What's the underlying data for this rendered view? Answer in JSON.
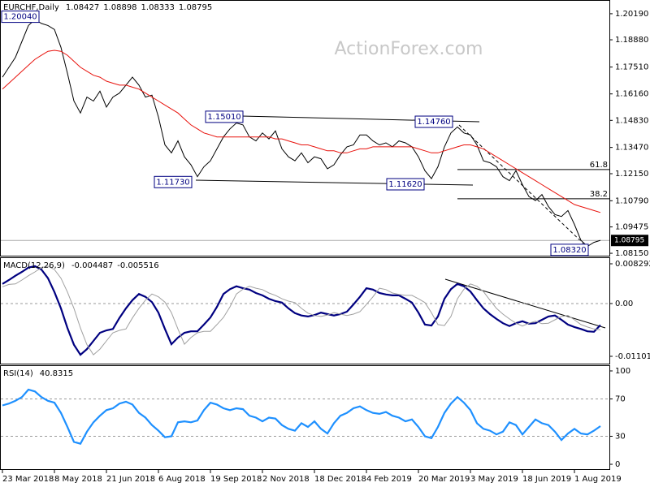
{
  "chart_data": [
    {
      "type": "line",
      "title": "EURCHF,Daily",
      "ohlc": [
        1.08427,
        1.08898,
        1.08333,
        1.08795
      ],
      "watermark": "ActionForex.com",
      "ylim": [
        1.0803,
        1.2088
      ],
      "yticks": [
        {
          "value": 1.2019,
          "label": "1.20190"
        },
        {
          "value": 1.1888,
          "label": "1.18880"
        },
        {
          "value": 1.1751,
          "label": "1.17510"
        },
        {
          "value": 1.1616,
          "label": "1.16160"
        },
        {
          "value": 1.1483,
          "label": "1.14830"
        },
        {
          "value": 1.1347,
          "label": "1.13470"
        },
        {
          "value": 1.1215,
          "label": "1.12150"
        },
        {
          "value": 1.1079,
          "label": "1.10790"
        },
        1.09475,
        {
          "value": 1.0815,
          "label": "1.08150"
        }
      ],
      "categories": [
        "23 Mar 2018",
        null,
        null,
        null,
        null,
        null,
        null,
        null,
        "8 May 2018",
        null,
        null,
        null,
        null,
        null,
        null,
        null,
        "21 Jun 2018",
        null,
        null,
        null,
        null,
        null,
        null,
        null,
        "6 Aug 2018",
        null,
        null,
        null,
        null,
        null,
        null,
        null,
        "19 Sep 2018",
        null,
        null,
        null,
        null,
        null,
        null,
        null,
        "2 Nov 2018",
        null,
        null,
        null,
        null,
        null,
        null,
        null,
        "18 Dec 2018",
        null,
        null,
        null,
        null,
        null,
        null,
        null,
        "4 Feb 2019",
        null,
        null,
        null,
        null,
        null,
        null,
        null,
        "20 Mar 2019",
        null,
        null,
        null,
        null,
        null,
        null,
        null,
        "3 May 2019",
        null,
        null,
        null,
        null,
        null,
        null,
        null,
        "18 Jun 2019",
        null,
        null,
        null,
        null,
        null,
        null,
        null,
        "1 Aug 2019",
        null,
        null,
        null,
        null
      ],
      "series": [
        {
          "color": "#000000",
          "values": [
            1.17,
            1.175,
            1.18,
            1.188,
            1.196,
            1.199,
            1.197,
            1.196,
            1.194,
            1.185,
            1.172,
            1.158,
            1.152,
            1.16,
            1.158,
            1.163,
            1.155,
            1.16,
            1.162,
            1.166,
            1.17,
            1.166,
            1.16,
            1.161,
            1.15,
            1.136,
            1.132,
            1.138,
            1.13,
            1.126,
            1.12,
            1.125,
            1.128,
            1.134,
            1.14,
            1.144,
            1.147,
            1.146,
            1.14,
            1.138,
            1.142,
            1.139,
            1.143,
            1.134,
            1.13,
            1.128,
            1.132,
            1.127,
            1.13,
            1.129,
            1.124,
            1.126,
            1.131,
            1.135,
            1.136,
            1.141,
            1.141,
            1.138,
            1.136,
            1.137,
            1.135,
            1.138,
            1.137,
            1.135,
            1.13,
            1.123,
            1.119,
            1.125,
            1.135,
            1.142,
            1.145,
            1.142,
            1.141,
            1.136,
            1.128,
            1.127,
            1.125,
            1.12,
            1.118,
            1.123,
            1.116,
            1.11,
            1.108,
            1.111,
            1.105,
            1.101,
            1.1,
            1.103,
            1.096,
            1.088,
            1.085,
            1.087,
            1.088
          ]
        },
        {
          "color": "#e8120c",
          "values": [
            1.164,
            1.167,
            1.17,
            1.173,
            1.176,
            1.179,
            1.181,
            1.183,
            1.1835,
            1.183,
            1.181,
            1.178,
            1.175,
            1.173,
            1.171,
            1.17,
            1.168,
            1.167,
            1.166,
            1.166,
            1.165,
            1.164,
            1.162,
            1.16,
            1.158,
            1.156,
            1.154,
            1.152,
            1.149,
            1.146,
            1.144,
            1.142,
            1.141,
            1.14,
            1.14,
            1.14,
            1.14,
            1.14,
            1.14,
            1.14,
            1.14,
            1.14,
            1.139,
            1.139,
            1.138,
            1.137,
            1.136,
            1.136,
            1.135,
            1.134,
            1.133,
            1.133,
            1.132,
            1.132,
            1.133,
            1.134,
            1.134,
            1.135,
            1.135,
            1.135,
            1.135,
            1.135,
            1.135,
            1.135,
            1.134,
            1.133,
            1.132,
            1.132,
            1.133,
            1.134,
            1.135,
            1.136,
            1.136,
            1.135,
            1.134,
            1.132,
            1.13,
            1.128,
            1.126,
            1.124,
            1.122,
            1.12,
            1.118,
            1.116,
            1.114,
            1.112,
            1.11,
            1.108,
            1.106,
            1.105,
            1.104,
            1.103,
            1.102
          ]
        }
      ],
      "annotations": [
        {
          "value": 1.2004,
          "label": "1.20040"
        },
        {
          "value": 1.1501,
          "label": "1.15010"
        },
        {
          "value": 1.1476,
          "label": "1.14760"
        },
        {
          "value": 1.1173,
          "label": "1.11730"
        },
        {
          "value": 1.1162,
          "label": "1.11620"
        },
        {
          "value": 1.0832,
          "label": "1.08320"
        }
      ],
      "fib_levels": [
        {
          "ratio": 61.8,
          "price": 1.1236
        },
        {
          "ratio": 38.2,
          "price": 1.1089
        }
      ],
      "last": 1.08795
    },
    {
      "type": "line",
      "title": "MACD(12,26,9)",
      "readout": [
        -0.004487,
        -0.005516
      ],
      "ylim": [
        -0.01254,
        0.00948
      ],
      "yticks": [
        0.008292,
        {
          "value": 0,
          "label": "0.00"
        },
        -0.011015
      ],
      "levels": [
        0
      ],
      "series": [
        {
          "color": "#000080",
          "values": [
            0.0041,
            0.0049,
            0.0058,
            0.0066,
            0.0075,
            0.0078,
            0.0071,
            0.0053,
            0.0024,
            -0.001,
            -0.0051,
            -0.0086,
            -0.0107,
            -0.0095,
            -0.0078,
            -0.0061,
            -0.0056,
            -0.0053,
            -0.003,
            -0.001,
            0.0007,
            0.002,
            0.0014,
            0.0003,
            -0.0019,
            -0.0053,
            -0.0085,
            -0.0071,
            -0.0061,
            -0.0058,
            -0.0058,
            -0.0044,
            -0.0029,
            -0.0007,
            0.002,
            0.003,
            0.0036,
            0.0032,
            0.0029,
            0.0022,
            0.0017,
            0.001,
            0.0005,
            0.0002,
            -0.001,
            -0.002,
            -0.0025,
            -0.0027,
            -0.0024,
            -0.0019,
            -0.0022,
            -0.0025,
            -0.0022,
            -0.0017,
            -0.0002,
            0.0014,
            0.0032,
            0.0029,
            0.0022,
            0.0019,
            0.0017,
            0.0017,
            0.001,
            0.0002,
            -0.0019,
            -0.0044,
            -0.0046,
            -0.0027,
            0.001,
            0.003,
            0.0041,
            0.0036,
            0.0025,
            0.0007,
            -0.001,
            -0.0022,
            -0.0032,
            -0.0041,
            -0.0047,
            -0.0041,
            -0.0037,
            -0.0042,
            -0.0041,
            -0.0034,
            -0.0027,
            -0.0025,
            -0.0034,
            -0.0044,
            -0.0049,
            -0.0053,
            -0.0058,
            -0.0059,
            -0.0045
          ]
        },
        {
          "color": "#a0a0a0",
          "values": [
            0.0035,
            0.004,
            0.0041,
            0.0049,
            0.0058,
            0.0066,
            0.0075,
            0.0078,
            0.0071,
            0.0053,
            0.0024,
            -0.001,
            -0.0051,
            -0.0086,
            -0.0107,
            -0.0095,
            -0.0078,
            -0.0061,
            -0.0056,
            -0.0053,
            -0.003,
            -0.001,
            0.0007,
            0.002,
            0.0014,
            0.0003,
            -0.0019,
            -0.0053,
            -0.0085,
            -0.0071,
            -0.0061,
            -0.0058,
            -0.0058,
            -0.0044,
            -0.0029,
            -0.0007,
            0.002,
            0.003,
            0.0036,
            0.0032,
            0.0029,
            0.0022,
            0.0017,
            0.001,
            0.0005,
            0.0002,
            -0.001,
            -0.002,
            -0.0025,
            -0.0027,
            -0.0024,
            -0.0019,
            -0.0022,
            -0.0025,
            -0.0022,
            -0.0017,
            -0.0002,
            0.0014,
            0.0032,
            0.0029,
            0.0022,
            0.0019,
            0.0017,
            0.0017,
            0.001,
            0.0002,
            -0.0019,
            -0.0044,
            -0.0046,
            -0.0027,
            0.001,
            0.003,
            0.0041,
            0.0036,
            0.0025,
            0.0007,
            -0.001,
            -0.0022,
            -0.0032,
            -0.0041,
            -0.0047,
            -0.0041,
            -0.0037,
            -0.0042,
            -0.0041,
            -0.0034,
            -0.0027,
            -0.0025,
            -0.0034,
            -0.0044,
            -0.0049,
            -0.0053,
            -0.0055
          ]
        }
      ]
    },
    {
      "type": "line",
      "title": "RSI(14)",
      "readout": [
        40.8315
      ],
      "ylim": [
        -5.2,
        105.2
      ],
      "yticks": [
        100,
        70,
        30,
        0
      ],
      "levels": [
        70,
        30
      ],
      "series": [
        {
          "color": "#1e90ff",
          "values": [
            63,
            65,
            68,
            72,
            80,
            78,
            72,
            68,
            66,
            55,
            40,
            24,
            22,
            35,
            45,
            52,
            58,
            60,
            65,
            67,
            64,
            55,
            50,
            42,
            36,
            29,
            30,
            45,
            46,
            45,
            47,
            58,
            66,
            64,
            60,
            58,
            60,
            59,
            52,
            50,
            46,
            50,
            49,
            42,
            38,
            36,
            44,
            40,
            46,
            38,
            33,
            44,
            52,
            55,
            60,
            62,
            58,
            55,
            54,
            56,
            52,
            50,
            46,
            48,
            40,
            30,
            28,
            40,
            55,
            65,
            72,
            66,
            58,
            44,
            38,
            36,
            32,
            35,
            45,
            42,
            32,
            40,
            48,
            44,
            42,
            35,
            26,
            33,
            38,
            33,
            32,
            36,
            40.8315
          ]
        }
      ]
    }
  ]
}
